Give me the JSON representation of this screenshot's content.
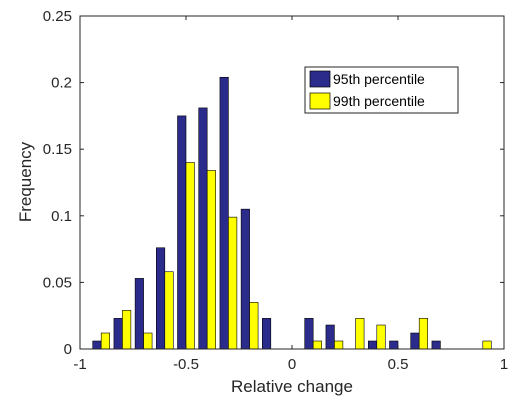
{
  "chart_data": {
    "type": "bar",
    "xlabel": "Relative change",
    "ylabel": "Frequency",
    "xlim": [
      -1,
      1
    ],
    "ylim": [
      0,
      0.25
    ],
    "xticks": [
      "-1",
      "-0.5",
      "0",
      "0.5",
      "1"
    ],
    "yticks": [
      "0",
      "0.05",
      "0.1",
      "0.15",
      "0.2",
      "0.25"
    ],
    "bin_centers": [
      -0.9,
      -0.8,
      -0.7,
      -0.6,
      -0.5,
      -0.4,
      -0.3,
      -0.2,
      -0.1,
      0.0,
      0.1,
      0.2,
      0.3,
      0.4,
      0.5,
      0.6,
      0.7,
      0.8,
      0.9
    ],
    "series": [
      {
        "name": "95th percentile",
        "color": "#2b2b8c",
        "values": [
          0.006,
          0.023,
          0.053,
          0.076,
          0.175,
          0.181,
          0.204,
          0.105,
          0.023,
          0.0,
          0.023,
          0.018,
          0.0,
          0.006,
          0.006,
          0.012,
          0.006,
          0.0,
          0.0
        ]
      },
      {
        "name": "99th percentile",
        "color": "#ffff00",
        "values": [
          0.012,
          0.029,
          0.012,
          0.058,
          0.14,
          0.134,
          0.099,
          0.035,
          0.0,
          0.0,
          0.006,
          0.006,
          0.023,
          0.018,
          0.0,
          0.023,
          0.0,
          0.0,
          0.006
        ]
      }
    ],
    "grid": false,
    "legend_position": "top-right"
  }
}
